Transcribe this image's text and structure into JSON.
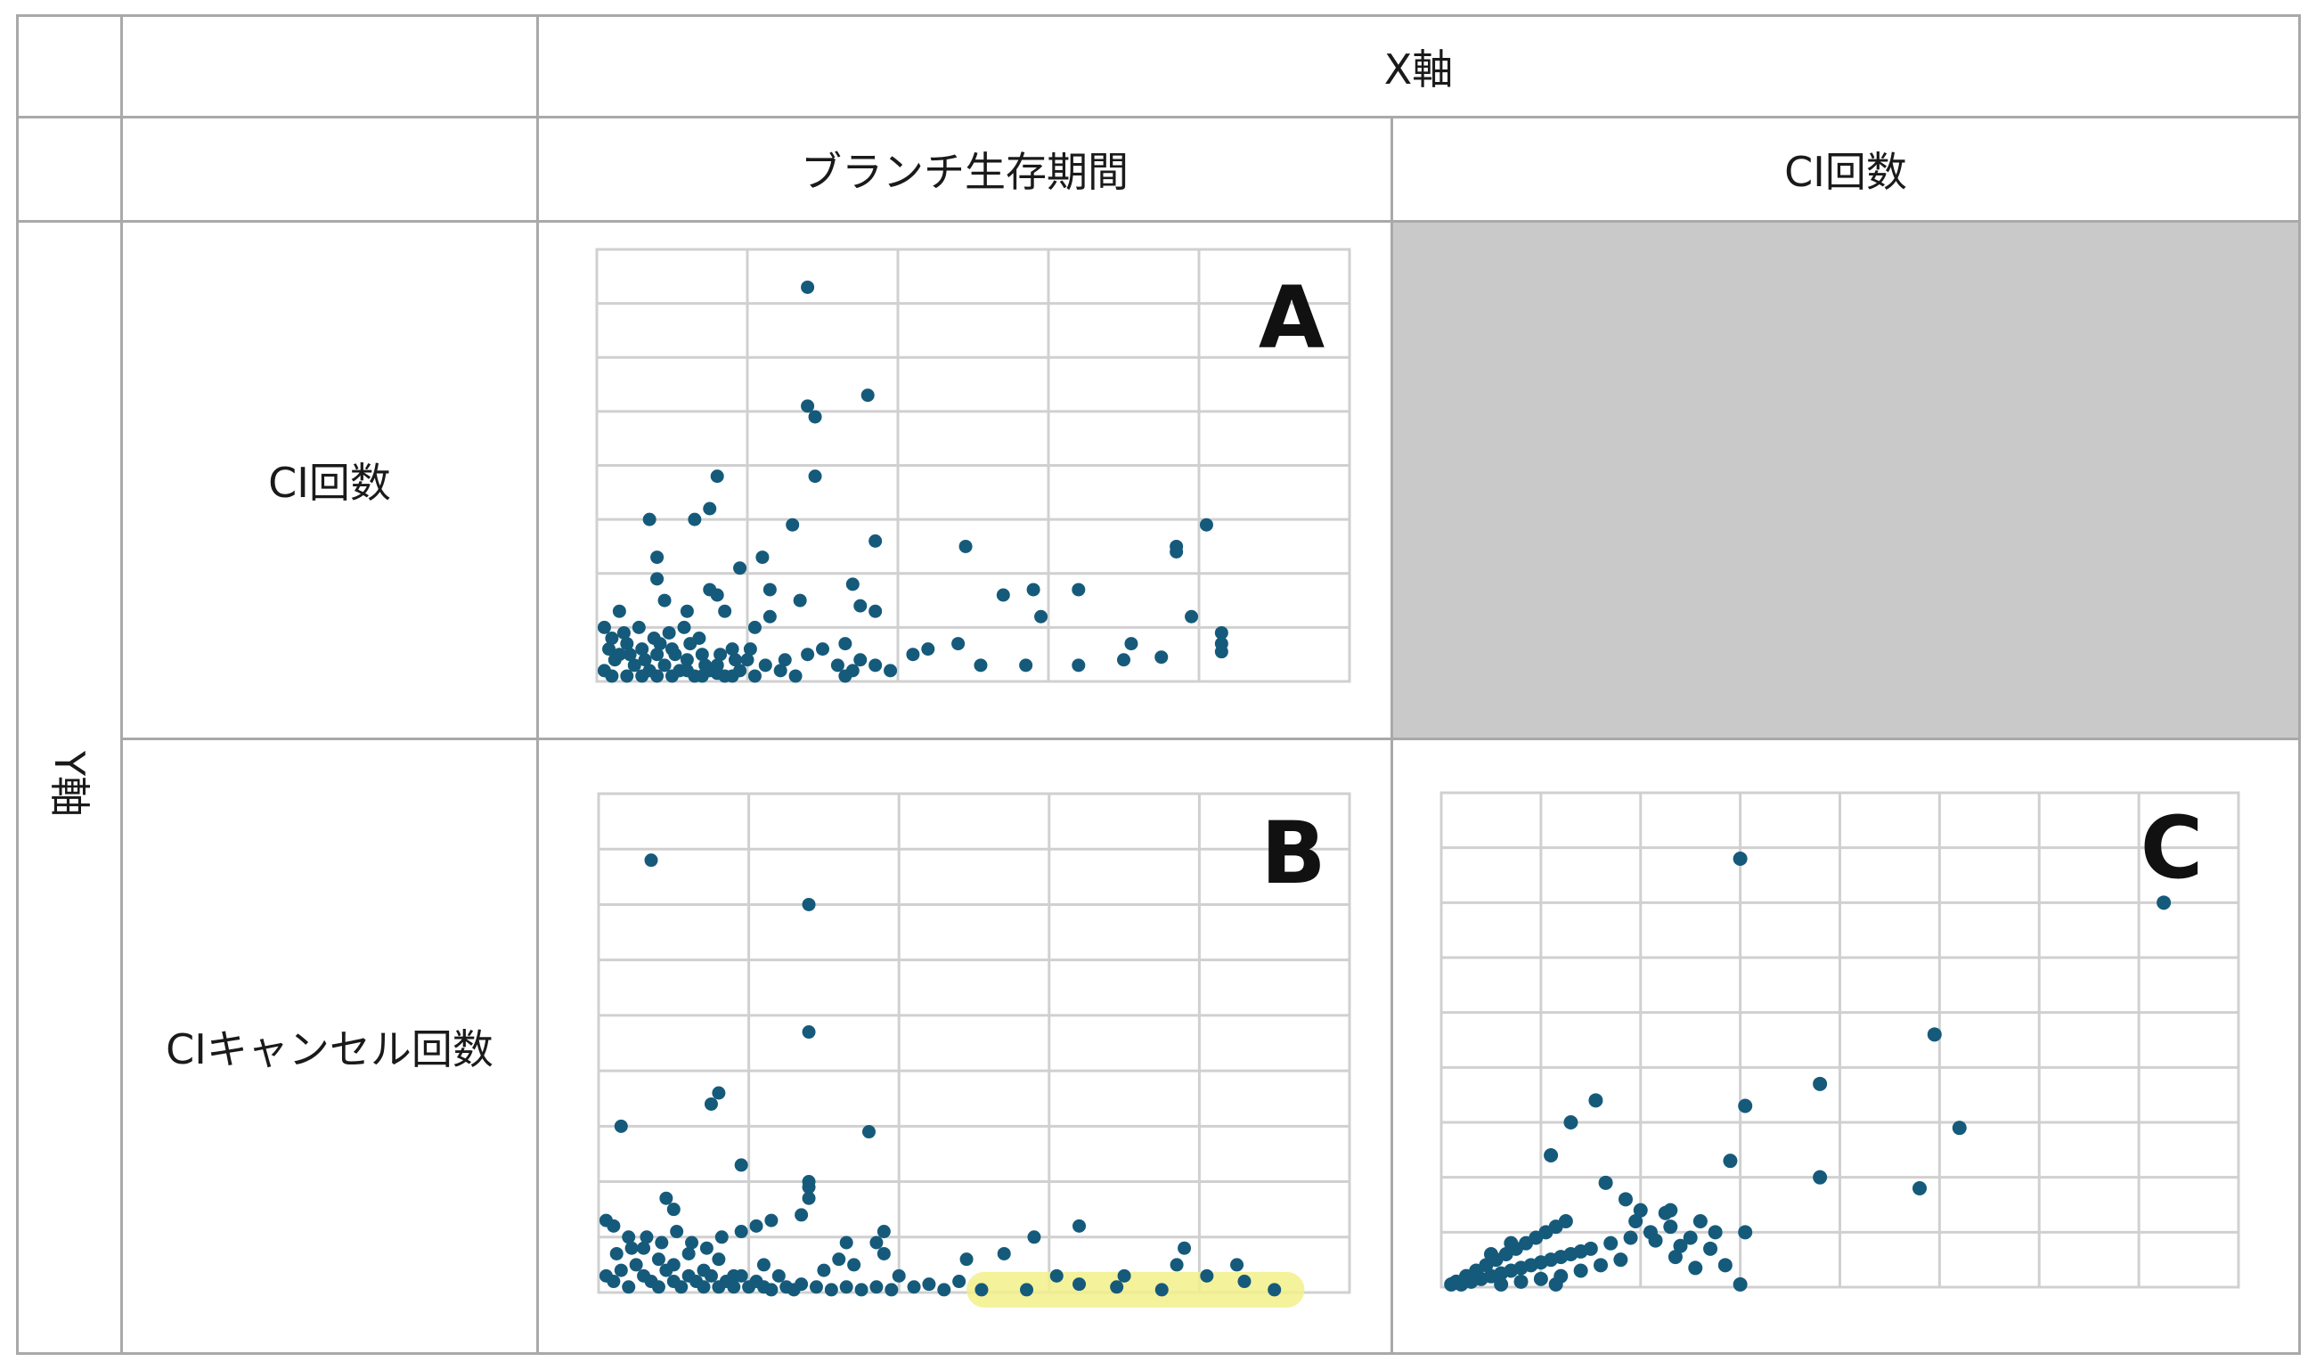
{
  "headers": {
    "x_axis": "X軸",
    "y_axis": "Y軸",
    "col1": "ブランチ生存期間",
    "col2": "CI回数",
    "row1": "CI回数",
    "row2": "CIキャンセル回数"
  },
  "chart_data": [
    {
      "id": "A",
      "type": "scatter",
      "label": "A",
      "x_label": "ブランチ生存期間",
      "y_label": "CI回数",
      "xlim": [
        0,
        5
      ],
      "ylim": [
        0,
        8
      ],
      "grid": "on",
      "points": [
        [
          1.4,
          7.3
        ],
        [
          1.4,
          5.1
        ],
        [
          1.45,
          4.9
        ],
        [
          1.8,
          5.3
        ],
        [
          1.45,
          3.8
        ],
        [
          0.8,
          3.8
        ],
        [
          0.75,
          3.2
        ],
        [
          0.35,
          3.0
        ],
        [
          0.65,
          3.0
        ],
        [
          1.3,
          2.9
        ],
        [
          1.85,
          2.6
        ],
        [
          2.45,
          2.5
        ],
        [
          3.85,
          2.4
        ],
        [
          4.05,
          2.9
        ],
        [
          3.85,
          2.5
        ],
        [
          1.1,
          2.3
        ],
        [
          0.4,
          2.3
        ],
        [
          0.95,
          2.1
        ],
        [
          0.4,
          1.9
        ],
        [
          0.75,
          1.7
        ],
        [
          1.7,
          1.8
        ],
        [
          2.7,
          1.6
        ],
        [
          2.9,
          1.7
        ],
        [
          3.2,
          1.7
        ],
        [
          1.15,
          1.7
        ],
        [
          1.35,
          1.5
        ],
        [
          0.8,
          1.6
        ],
        [
          0.45,
          1.5
        ],
        [
          2.95,
          1.2
        ],
        [
          3.95,
          1.2
        ],
        [
          1.85,
          1.3
        ],
        [
          1.75,
          1.4
        ],
        [
          1.15,
          1.2
        ],
        [
          1.05,
          1.0
        ],
        [
          0.85,
          1.3
        ],
        [
          0.6,
          1.3
        ],
        [
          0.15,
          1.3
        ],
        [
          0.05,
          1.0
        ],
        [
          4.15,
          0.9
        ],
        [
          4.15,
          0.7
        ],
        [
          4.15,
          0.55
        ],
        [
          3.5,
          0.4
        ],
        [
          3.75,
          0.45
        ],
        [
          3.55,
          0.7
        ],
        [
          2.4,
          0.7
        ],
        [
          2.2,
          0.6
        ],
        [
          2.1,
          0.5
        ],
        [
          2.55,
          0.3
        ],
        [
          2.85,
          0.3
        ],
        [
          3.2,
          0.3
        ],
        [
          1.65,
          0.7
        ],
        [
          1.5,
          0.6
        ],
        [
          1.4,
          0.5
        ],
        [
          1.25,
          0.4
        ],
        [
          1.75,
          0.4
        ],
        [
          1.85,
          0.3
        ],
        [
          1.95,
          0.2
        ],
        [
          1.7,
          0.2
        ],
        [
          1.65,
          0.1
        ],
        [
          1.6,
          0.3
        ],
        [
          0.1,
          0.8
        ],
        [
          0.2,
          0.7
        ],
        [
          0.3,
          0.6
        ],
        [
          0.4,
          0.5
        ],
        [
          0.5,
          0.6
        ],
        [
          0.6,
          0.4
        ],
        [
          0.7,
          0.5
        ],
        [
          0.8,
          0.3
        ],
        [
          0.9,
          0.6
        ],
        [
          1.0,
          0.4
        ],
        [
          0.15,
          0.5
        ],
        [
          0.25,
          0.3
        ],
        [
          0.35,
          0.2
        ],
        [
          0.45,
          0.3
        ],
        [
          0.55,
          0.2
        ],
        [
          0.65,
          0.1
        ],
        [
          0.75,
          0.2
        ],
        [
          0.85,
          0.1
        ],
        [
          0.95,
          0.2
        ],
        [
          1.05,
          0.1
        ],
        [
          0.05,
          0.2
        ],
        [
          0.1,
          0.1
        ],
        [
          0.2,
          0.1
        ],
        [
          0.3,
          0.1
        ],
        [
          0.4,
          0.1
        ],
        [
          0.5,
          0.1
        ],
        [
          0.6,
          0.2
        ],
        [
          0.7,
          0.1
        ],
        [
          0.8,
          0.15
        ],
        [
          0.9,
          0.1
        ],
        [
          0.12,
          0.4
        ],
        [
          0.22,
          0.5
        ],
        [
          0.32,
          0.4
        ],
        [
          0.42,
          0.7
        ],
        [
          0.52,
          0.5
        ],
        [
          0.62,
          0.7
        ],
        [
          0.72,
          0.3
        ],
        [
          0.82,
          0.5
        ],
        [
          0.92,
          0.4
        ],
        [
          1.02,
          0.6
        ],
        [
          1.12,
          0.3
        ],
        [
          1.22,
          0.2
        ],
        [
          1.32,
          0.1
        ],
        [
          0.08,
          0.6
        ],
        [
          0.18,
          0.9
        ],
        [
          0.28,
          1.0
        ],
        [
          0.38,
          0.8
        ],
        [
          0.48,
          0.9
        ],
        [
          0.58,
          1.0
        ],
        [
          0.68,
          0.8
        ]
      ]
    },
    {
      "id": "B",
      "type": "scatter",
      "label": "B",
      "x_label": "ブランチ生存期間",
      "y_label": "CIキャンセル回数",
      "xlim": [
        0,
        5
      ],
      "ylim": [
        0,
        9
      ],
      "grid": "on",
      "highlight": {
        "x_range": [
          2.45,
          4.7
        ],
        "y": 0.05
      },
      "points": [
        [
          0.35,
          7.8
        ],
        [
          1.4,
          7.0
        ],
        [
          1.4,
          4.7
        ],
        [
          0.15,
          3.0
        ],
        [
          0.8,
          3.6
        ],
        [
          0.75,
          3.4
        ],
        [
          1.8,
          2.9
        ],
        [
          0.95,
          2.3
        ],
        [
          1.4,
          1.9
        ],
        [
          1.4,
          1.7
        ],
        [
          0.45,
          1.7
        ],
        [
          0.5,
          1.5
        ],
        [
          1.35,
          1.4
        ],
        [
          1.15,
          1.3
        ],
        [
          1.05,
          1.2
        ],
        [
          0.95,
          1.1
        ],
        [
          1.9,
          1.1
        ],
        [
          1.85,
          0.9
        ],
        [
          3.2,
          1.2
        ],
        [
          2.9,
          1.0
        ],
        [
          3.9,
          0.8
        ],
        [
          2.7,
          0.7
        ],
        [
          2.45,
          0.6
        ],
        [
          3.85,
          0.5
        ],
        [
          4.25,
          0.5
        ],
        [
          1.6,
          0.6
        ],
        [
          1.7,
          0.5
        ],
        [
          1.5,
          0.4
        ],
        [
          1.2,
          0.3
        ],
        [
          1.1,
          0.5
        ],
        [
          0.05,
          1.3
        ],
        [
          0.1,
          1.2
        ],
        [
          0.2,
          1.0
        ],
        [
          0.3,
          0.8
        ],
        [
          0.4,
          0.6
        ],
        [
          0.5,
          0.5
        ],
        [
          0.6,
          0.7
        ],
        [
          0.7,
          0.4
        ],
        [
          0.8,
          0.6
        ],
        [
          0.9,
          0.3
        ],
        [
          0.05,
          0.3
        ],
        [
          0.1,
          0.2
        ],
        [
          0.15,
          0.4
        ],
        [
          0.2,
          0.1
        ],
        [
          0.25,
          0.5
        ],
        [
          0.3,
          0.3
        ],
        [
          0.35,
          0.2
        ],
        [
          0.4,
          0.1
        ],
        [
          0.45,
          0.4
        ],
        [
          0.5,
          0.2
        ],
        [
          0.55,
          0.1
        ],
        [
          0.6,
          0.3
        ],
        [
          0.65,
          0.2
        ],
        [
          0.7,
          0.1
        ],
        [
          0.75,
          0.3
        ],
        [
          0.8,
          0.1
        ],
        [
          0.85,
          0.2
        ],
        [
          0.9,
          0.1
        ],
        [
          0.95,
          0.3
        ],
        [
          1.0,
          0.1
        ],
        [
          1.05,
          0.2
        ],
        [
          1.1,
          0.1
        ],
        [
          1.15,
          0.05
        ],
        [
          1.25,
          0.1
        ],
        [
          1.3,
          0.05
        ],
        [
          1.35,
          0.15
        ],
        [
          1.45,
          0.1
        ],
        [
          1.55,
          0.05
        ],
        [
          1.65,
          0.1
        ],
        [
          1.75,
          0.05
        ],
        [
          1.85,
          0.1
        ],
        [
          1.95,
          0.05
        ],
        [
          0.12,
          0.7
        ],
        [
          0.22,
          0.8
        ],
        [
          0.32,
          1.0
        ],
        [
          0.42,
          0.9
        ],
        [
          0.52,
          1.1
        ],
        [
          0.62,
          0.9
        ],
        [
          0.72,
          0.8
        ],
        [
          0.82,
          1.0
        ],
        [
          2.1,
          0.1
        ],
        [
          2.2,
          0.15
        ],
        [
          2.3,
          0.05
        ],
        [
          2.55,
          0.05
        ],
        [
          2.85,
          0.05
        ],
        [
          3.05,
          0.3
        ],
        [
          3.2,
          0.15
        ],
        [
          3.45,
          0.1
        ],
        [
          3.5,
          0.3
        ],
        [
          3.75,
          0.05
        ],
        [
          4.05,
          0.3
        ],
        [
          4.3,
          0.2
        ],
        [
          4.5,
          0.05
        ],
        [
          1.4,
          2.0
        ],
        [
          1.65,
          0.9
        ],
        [
          1.9,
          0.7
        ],
        [
          2.0,
          0.3
        ],
        [
          2.4,
          0.2
        ]
      ]
    },
    {
      "id": "C",
      "type": "scatter",
      "label": "C",
      "x_label": "CI回数",
      "y_label": "CIキャンセル回数",
      "xlim": [
        0,
        8
      ],
      "ylim": [
        0,
        9
      ],
      "grid": "on",
      "points": [
        [
          3.0,
          7.8
        ],
        [
          7.25,
          7.0
        ],
        [
          4.95,
          4.6
        ],
        [
          3.8,
          3.7
        ],
        [
          5.2,
          2.9
        ],
        [
          3.05,
          3.3
        ],
        [
          1.55,
          3.4
        ],
        [
          1.3,
          3.0
        ],
        [
          1.1,
          2.4
        ],
        [
          2.9,
          2.3
        ],
        [
          3.8,
          2.0
        ],
        [
          4.8,
          1.8
        ],
        [
          1.65,
          1.9
        ],
        [
          1.85,
          1.6
        ],
        [
          2.0,
          1.4
        ],
        [
          2.3,
          1.4
        ],
        [
          2.6,
          1.2
        ],
        [
          2.75,
          1.0
        ],
        [
          2.5,
          0.9
        ],
        [
          2.3,
          1.1
        ],
        [
          2.1,
          1.0
        ],
        [
          1.9,
          0.9
        ],
        [
          1.7,
          0.8
        ],
        [
          1.5,
          0.7
        ],
        [
          1.3,
          0.6
        ],
        [
          1.1,
          0.5
        ],
        [
          0.9,
          0.4
        ],
        [
          0.7,
          0.3
        ],
        [
          0.5,
          0.2
        ],
        [
          0.3,
          0.1
        ],
        [
          0.2,
          0.05
        ],
        [
          0.1,
          0.05
        ],
        [
          0.4,
          0.15
        ],
        [
          0.6,
          0.25
        ],
        [
          0.8,
          0.35
        ],
        [
          1.0,
          0.45
        ],
        [
          1.2,
          0.55
        ],
        [
          1.4,
          0.65
        ],
        [
          0.35,
          0.3
        ],
        [
          0.45,
          0.4
        ],
        [
          0.55,
          0.5
        ],
        [
          0.65,
          0.6
        ],
        [
          0.75,
          0.7
        ],
        [
          0.85,
          0.8
        ],
        [
          0.95,
          0.9
        ],
        [
          1.05,
          1.0
        ],
        [
          1.15,
          1.1
        ],
        [
          1.25,
          1.2
        ],
        [
          0.25,
          0.2
        ],
        [
          0.15,
          0.1
        ],
        [
          2.55,
          0.35
        ],
        [
          2.35,
          0.55
        ],
        [
          1.8,
          0.5
        ],
        [
          1.6,
          0.4
        ],
        [
          1.4,
          0.3
        ],
        [
          1.2,
          0.2
        ],
        [
          1.0,
          0.15
        ],
        [
          0.8,
          0.1
        ],
        [
          0.6,
          0.05
        ],
        [
          2.85,
          0.4
        ],
        [
          3.0,
          0.05
        ],
        [
          1.15,
          0.05
        ],
        [
          2.4,
          0.75
        ],
        [
          2.7,
          0.7
        ],
        [
          3.05,
          1.0
        ],
        [
          2.15,
          0.85
        ],
        [
          2.25,
          1.35
        ],
        [
          1.95,
          1.2
        ],
        [
          0.5,
          0.6
        ],
        [
          0.7,
          0.8
        ]
      ]
    }
  ]
}
